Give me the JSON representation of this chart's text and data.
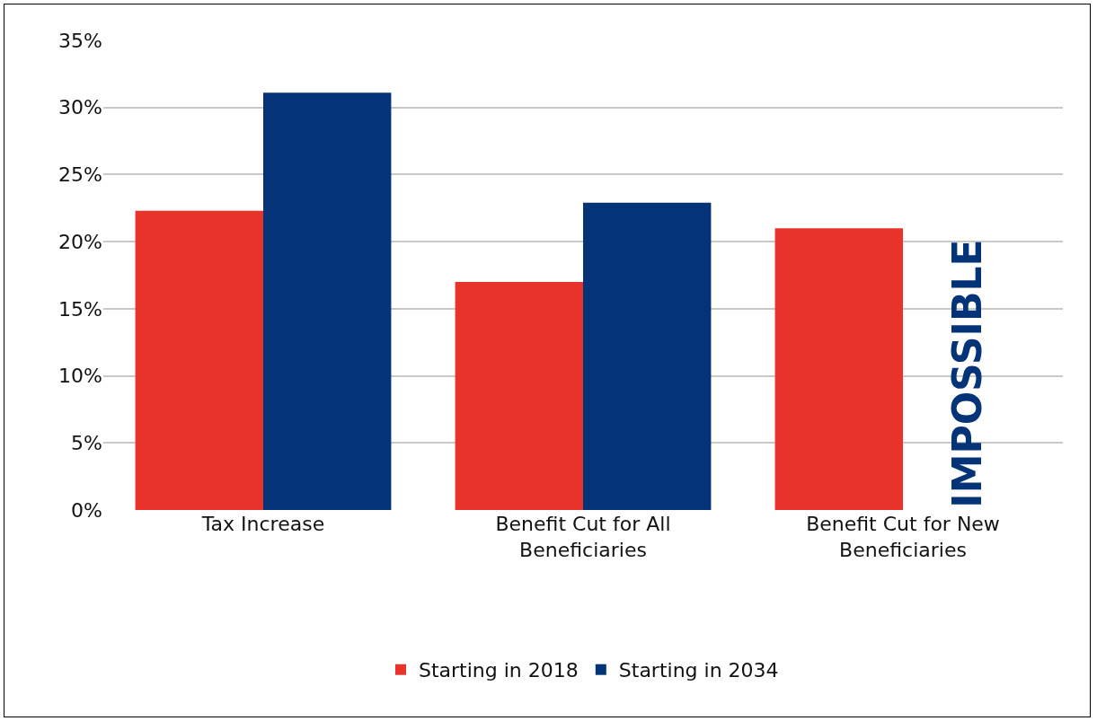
{
  "chart_data": {
    "type": "bar",
    "categories": [
      "Tax Increase",
      "Benefit Cut for All Beneficiaries",
      "Benefit Cut for New Beneficiaries"
    ],
    "series": [
      {
        "name": "Starting in 2018",
        "color": "#e8332a",
        "values": [
          22.3,
          17.0,
          21.0
        ]
      },
      {
        "name": "Starting in 2034",
        "color": "#043377",
        "values": [
          31.1,
          22.9,
          null
        ]
      }
    ],
    "ylim": [
      0,
      35
    ],
    "yticks": [
      {
        "value": 0,
        "label": "0%"
      },
      {
        "value": 5,
        "label": "5%"
      },
      {
        "value": 10,
        "label": "10%"
      },
      {
        "value": 15,
        "label": "15%"
      },
      {
        "value": 20,
        "label": "20%"
      },
      {
        "value": 25,
        "label": "25%"
      },
      {
        "value": 30,
        "label": "30%"
      },
      {
        "value": 35,
        "label": "35%"
      }
    ],
    "annotations": [
      {
        "text": "IMPOSSIBLE",
        "x": "Benefit Cut for New Beneficiaries"
      }
    ],
    "grid": "y",
    "legend": "bottom"
  }
}
